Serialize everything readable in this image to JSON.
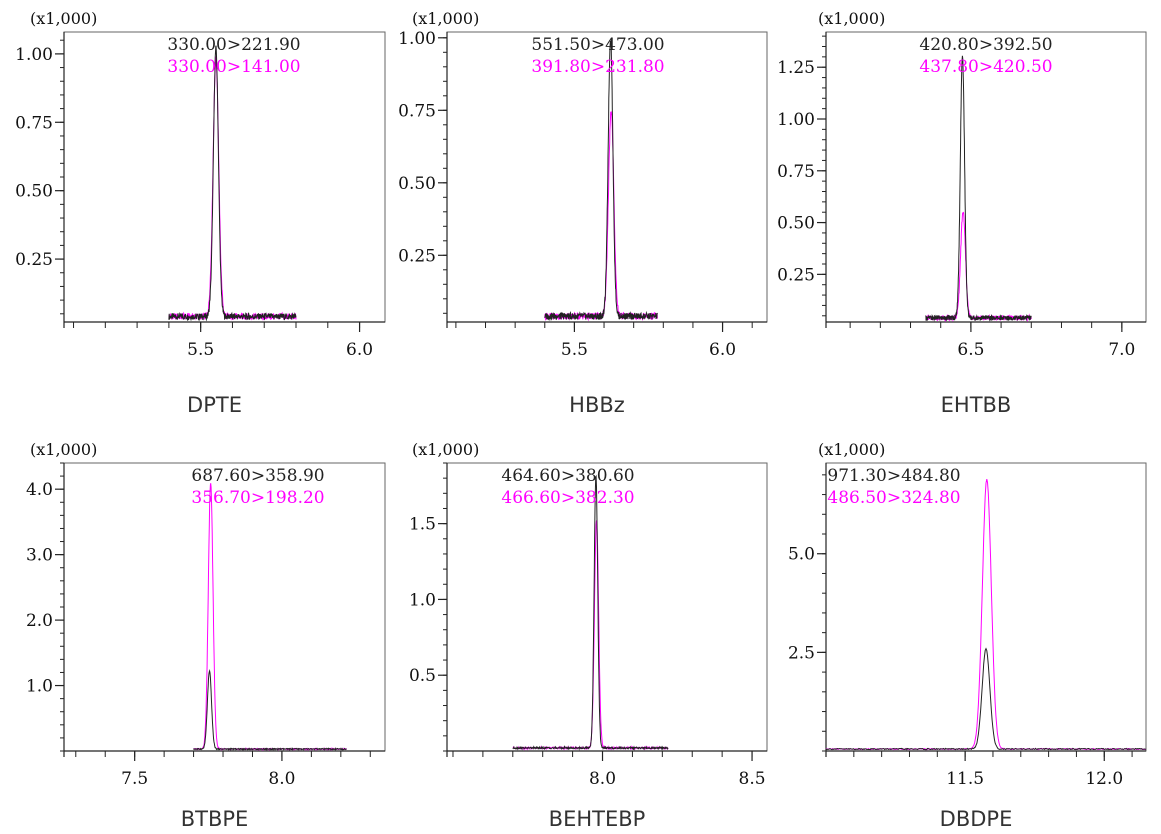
{
  "colors": {
    "series1": "#222222",
    "series2": "#ff00ff",
    "frame": "#666666"
  },
  "chart_data": [
    {
      "type": "line",
      "name": "DPTE",
      "scale_label": "(x1,000)",
      "xlim": [
        5.07,
        6.08
      ],
      "ylim": [
        0.02,
        1.08
      ],
      "xticks": [
        5.5,
        6.0
      ],
      "xtick_labels": [
        "5.5",
        "6.0"
      ],
      "xminor": 0.1,
      "yticks": [
        0.25,
        0.5,
        0.75,
        1.0
      ],
      "ytick_labels": [
        "0.25",
        "0.50",
        "0.75",
        "1.00"
      ],
      "yminor": 0.05,
      "series": [
        {
          "name": "330.00>221.90",
          "apex": 5.548,
          "height": 1.02,
          "width": 0.008,
          "start": 5.4,
          "end": 5.8,
          "base": 0.04
        },
        {
          "name": "330.00>141.00",
          "apex": 5.548,
          "height": 0.98,
          "width": 0.009,
          "start": 5.4,
          "end": 5.8,
          "base": 0.04
        }
      ]
    },
    {
      "type": "line",
      "name": "HBBz",
      "scale_label": "(x1,000)",
      "xlim": [
        5.07,
        6.15
      ],
      "ylim": [
        0.02,
        1.02
      ],
      "xticks": [
        5.5,
        6.0
      ],
      "xtick_labels": [
        "5.5",
        "6.0"
      ],
      "xminor": 0.1,
      "yticks": [
        0.25,
        0.5,
        0.75,
        1.0
      ],
      "ytick_labels": [
        "0.25",
        "0.50",
        "0.75",
        "1.00"
      ],
      "yminor": 0.05,
      "series": [
        {
          "name": "551.50>473.00",
          "apex": 5.622,
          "height": 1.0,
          "width": 0.008,
          "start": 5.4,
          "end": 5.78,
          "base": 0.04
        },
        {
          "name": "391.80>231.80",
          "apex": 5.624,
          "height": 0.75,
          "width": 0.009,
          "start": 5.4,
          "end": 5.78,
          "base": 0.04
        }
      ]
    },
    {
      "type": "line",
      "name": "EHTBB",
      "scale_label": "(x1,000)",
      "xlim": [
        6.02,
        7.08
      ],
      "ylim": [
        0.02,
        1.42
      ],
      "xticks": [
        6.5,
        7.0
      ],
      "xtick_labels": [
        "6.5",
        "7.0"
      ],
      "xminor": 0.1,
      "yticks": [
        0.25,
        0.5,
        0.75,
        1.0,
        1.25
      ],
      "ytick_labels": [
        "0.25",
        "0.50",
        "0.75",
        "1.00",
        "1.25"
      ],
      "yminor": 0.05,
      "series": [
        {
          "name": "420.80>392.50",
          "apex": 6.472,
          "height": 1.3,
          "width": 0.007,
          "start": 6.35,
          "end": 6.7,
          "base": 0.04
        },
        {
          "name": "437.80>420.50",
          "apex": 6.474,
          "height": 0.55,
          "width": 0.008,
          "start": 6.35,
          "end": 6.7,
          "base": 0.04
        }
      ]
    },
    {
      "type": "line",
      "name": "BTBPE",
      "scale_label": "(x1,000)",
      "xlim": [
        7.26,
        8.35
      ],
      "ylim": [
        0.0,
        4.4
      ],
      "xticks": [
        7.5,
        8.0
      ],
      "xtick_labels": [
        "7.5",
        "8.0"
      ],
      "xminor": 0.1,
      "yticks": [
        1.0,
        2.0,
        3.0,
        4.0
      ],
      "ytick_labels": [
        "1.0",
        "2.0",
        "3.0",
        "4.0"
      ],
      "yminor": 0.2,
      "series": [
        {
          "name": "687.60>358.90",
          "apex": 7.754,
          "height": 1.22,
          "width": 0.007,
          "start": 7.7,
          "end": 8.22,
          "base": 0.03
        },
        {
          "name": "356.70>198.20",
          "apex": 7.758,
          "height": 4.1,
          "width": 0.008,
          "start": 7.7,
          "end": 8.22,
          "base": 0.03
        }
      ]
    },
    {
      "type": "line",
      "name": "BEHTEBP",
      "scale_label": "(x1,000)",
      "xlim": [
        7.48,
        8.55
      ],
      "ylim": [
        0.0,
        1.9
      ],
      "xticks": [
        8.0,
        8.5
      ],
      "xtick_labels": [
        "8.0",
        "8.5"
      ],
      "xminor": 0.1,
      "yticks": [
        0.5,
        1.0,
        1.5
      ],
      "ytick_labels": [
        "0.5",
        "1.0",
        "1.5"
      ],
      "yminor": 0.1,
      "series": [
        {
          "name": "464.60>380.60",
          "apex": 7.978,
          "height": 1.82,
          "width": 0.006,
          "start": 7.7,
          "end": 8.22,
          "base": 0.02
        },
        {
          "name": "466.60>382.30",
          "apex": 7.98,
          "height": 1.52,
          "width": 0.007,
          "start": 7.7,
          "end": 8.22,
          "base": 0.02
        }
      ]
    },
    {
      "type": "line",
      "name": "DBDPE",
      "scale_label": "(x1,000)",
      "xlim": [
        11.0,
        12.15
      ],
      "ylim": [
        0.0,
        7.3
      ],
      "xticks": [
        11.5,
        12.0
      ],
      "xtick_labels": [
        "11.5",
        "12.0"
      ],
      "xminor": 0.1,
      "yticks": [
        2.5,
        5.0
      ],
      "ytick_labels": [
        "2.5",
        "5.0"
      ],
      "yminor": 0.5,
      "series": [
        {
          "name": "971.30>484.80",
          "apex": 11.575,
          "height": 2.6,
          "width": 0.014,
          "start": 11.0,
          "end": 12.15,
          "base": 0.05
        },
        {
          "name": "486.50>324.80",
          "apex": 11.578,
          "height": 6.9,
          "width": 0.016,
          "start": 11.0,
          "end": 12.15,
          "base": 0.05
        }
      ]
    }
  ]
}
